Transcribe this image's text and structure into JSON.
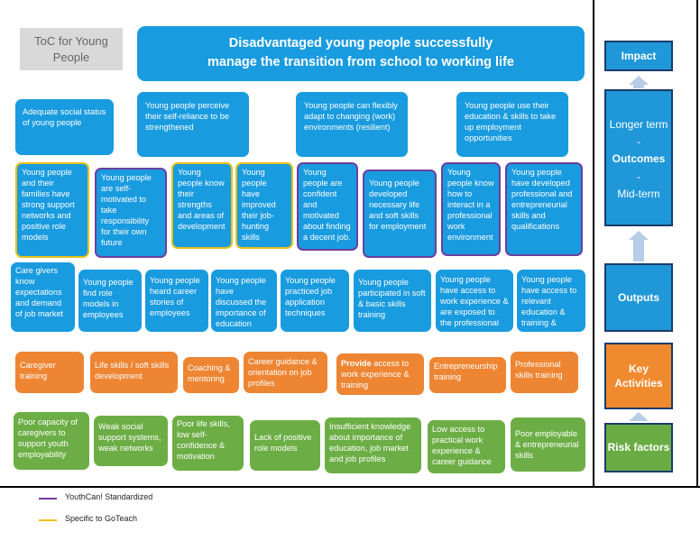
{
  "colors": {
    "blue": "#199bdf",
    "purple_border": "#6b3fa0",
    "yellow_border": "#e7c11c",
    "orange": "#ee8532",
    "green": "#6cae45",
    "side_blue": "#1f97d8",
    "side_orange": "#f08a2e",
    "side_green": "#6aac44",
    "arrow": "#b7cce6"
  },
  "label_box": "ToC for Young People",
  "title": {
    "line1": "Disadvantaged young people successfully",
    "line2": "manage the transition from school to working life"
  },
  "long_term_outcomes": [
    "Adequate social status of young people",
    "Young people perceive their self-reliance to be strengthened",
    "Young people can flexibly adapt to changing (work) environments (resilient)",
    "Young people use their education & skills to take up employment opportunities"
  ],
  "mid_term_outcomes": [
    "Young people and their families have strong support networks and positive role models",
    "Young people are self-motivated to take responsibility for their own future",
    "Young people know their strengths and areas of development",
    "Young people have improved their job-hunting skills",
    "Young people are confident and motivated about finding a decent job.",
    "Young people developed necessary life and soft skills for employment",
    "Young people know how to interact in a professional work environment",
    "Young people have developed professional and entrepreneurial skills and qualifications"
  ],
  "outputs": [
    "Care givers know expectations and demand of job market",
    "Young people find role models in employees",
    "Young people heard career stories of employees",
    "Young people have discussed the importance of education",
    "Young people practiced job application techniques",
    "Young people participated in soft & basic skills training",
    "Young people have access to work experience & are exposed to the professional",
    "Young people have access to relevant education & training &"
  ],
  "activities": [
    {
      "bold": "",
      "text": "Caregiver training"
    },
    {
      "bold": "",
      "text": "Life skills / soft skills development"
    },
    {
      "bold": "",
      "text": "Coaching & mentoring"
    },
    {
      "bold": "",
      "text": "Career guidance & orientation on job profiles"
    },
    {
      "bold": "Provide",
      "text": " access to work experience & training"
    },
    {
      "bold": "",
      "text": "Entrepreneurship training"
    },
    {
      "bold": "",
      "text": "Professional skills training"
    }
  ],
  "risk_factors": [
    "Poor capacity of caregivers to support youth employability",
    "Weak social support systems, weak networks",
    "Poor life skills, low self-confidence & motivation",
    "Lack of positive role models",
    "Insufficient knowledge about importance of education, job market and job profiles",
    "Low access to practical work experience & career guidance",
    "Poor employable & entrepreneurial skills"
  ],
  "sidebar": {
    "impact": "Impact",
    "longer_term": "Longer term",
    "dash1": "-",
    "outcomes": "Outcomes",
    "dash2": "-",
    "mid_term": "Mid-term",
    "outputs": "Outputs",
    "key_activities": "Key Activities",
    "risk_factors": "Risk factors"
  },
  "legend": [
    {
      "label": "YouthCan! Standardized",
      "color": "#6b3fa0"
    },
    {
      "label": "Specific to GoTeach",
      "color": "#e7c11c"
    }
  ]
}
